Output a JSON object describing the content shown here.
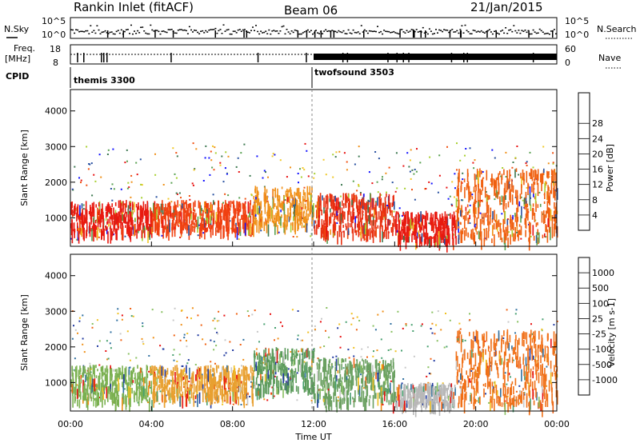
{
  "header": {
    "station": "Rankin Inlet (fitACF)",
    "beam": "Beam 06",
    "date": "21/Jan/2015"
  },
  "strip_labels": {
    "nsky": "N.Sky",
    "freq": "Freq.",
    "freq_unit": "[MHz]",
    "cpid": "CPID",
    "nsearch": "N.Search",
    "nave": "Nave",
    "nsky_top": "10^5",
    "nsky_bottom": "10^0",
    "nsearch_top": "10^5",
    "nsearch_bottom": "10^0",
    "freq_top": "18",
    "freq_bottom": "8",
    "nave_top": "60",
    "nave_bottom": "0"
  },
  "cpid": [
    {
      "name": "themis 3300",
      "start_hour": 0
    },
    {
      "name": "twofsound 3503",
      "start_hour": 12
    }
  ],
  "chart_data": [
    {
      "type": "heatmap",
      "panel": "power",
      "xlabel": "",
      "ylabel": "Slant Range [km]",
      "xlim_hours": [
        0,
        24
      ],
      "ylim": [
        200,
        4600
      ],
      "yticks": [
        "1000",
        "2000",
        "3000",
        "4000"
      ],
      "colorbar": {
        "label": "Power [dB]",
        "ticks": [
          "4",
          "8",
          "12",
          "16",
          "20",
          "24",
          "28"
        ],
        "colors": [
          "#1010ff",
          "#2850a0",
          "#3c7850",
          "#58a050",
          "#a8d030",
          "#f0c828",
          "#f09018",
          "#f05010",
          "#e81010"
        ]
      },
      "bands": [
        {
          "hours": [
            0,
            4
          ],
          "range": [
            600,
            1500
          ],
          "color": "#e81a10"
        },
        {
          "hours": [
            4,
            9
          ],
          "range": [
            700,
            1500
          ],
          "color": "#f04010"
        },
        {
          "hours": [
            9,
            12
          ],
          "range": [
            800,
            1900
          ],
          "color": "#f09018"
        },
        {
          "hours": [
            12,
            16
          ],
          "range": [
            600,
            1700
          ],
          "color": "#e83010"
        },
        {
          "hours": [
            16,
            19
          ],
          "range": [
            400,
            1200
          ],
          "color": "#e81a10"
        },
        {
          "hours": [
            19,
            24
          ],
          "range": [
            400,
            2400
          ],
          "color": "#f06010"
        }
      ]
    },
    {
      "type": "heatmap",
      "panel": "velocity",
      "xlabel": "Time UT",
      "ylabel": "Slant Range [km]",
      "xlim_hours": [
        0,
        24
      ],
      "ylim": [
        200,
        4600
      ],
      "yticks": [
        "1000",
        "2000",
        "3000",
        "4000"
      ],
      "xticks": [
        "00:00",
        "04:00",
        "08:00",
        "12:00",
        "16:00",
        "20:00",
        "00:00"
      ],
      "colorbar": {
        "label": "Velocity [m s-1]",
        "ticks": [
          "1000",
          "500",
          "100",
          "25",
          "-25",
          "-100",
          "-500",
          "-1000"
        ],
        "colors": [
          "#2038a0",
          "#3070a0",
          "#48a070",
          "#88c060",
          "#c8c8c8",
          "#f0c020",
          "#f09018",
          "#f06010",
          "#e81010"
        ]
      },
      "bands": [
        {
          "hours": [
            0,
            4
          ],
          "range": [
            500,
            1500
          ],
          "color": "#7ab050"
        },
        {
          "hours": [
            4,
            9
          ],
          "range": [
            600,
            1500
          ],
          "color": "#e8a030"
        },
        {
          "hours": [
            9,
            12
          ],
          "range": [
            800,
            2000
          ],
          "color": "#5a9a5a"
        },
        {
          "hours": [
            12,
            16
          ],
          "range": [
            500,
            1700
          ],
          "color": "#6aa060"
        },
        {
          "hours": [
            16,
            19
          ],
          "range": [
            400,
            1000
          ],
          "color": "#b8b8b8"
        },
        {
          "hours": [
            19,
            24
          ],
          "range": [
            400,
            2500
          ],
          "color": "#f07018"
        }
      ]
    }
  ]
}
